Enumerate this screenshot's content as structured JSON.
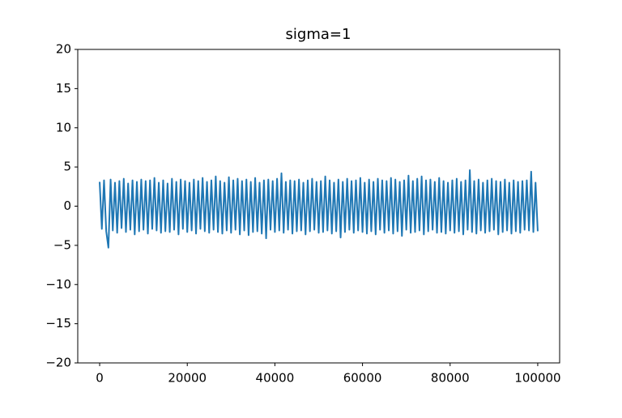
{
  "chart_data": {
    "type": "line",
    "title": "sigma=1",
    "color": "#1f77b4",
    "xlim": [
      -5000,
      105000
    ],
    "xticks": [
      0,
      20000,
      40000,
      60000,
      80000,
      100000
    ],
    "ylim": [
      -20,
      20
    ],
    "yticks": [
      {
        "value": -20,
        "label": "−20"
      },
      {
        "value": -15,
        "label": "−15"
      },
      {
        "value": -10,
        "label": "−10"
      },
      {
        "value": -5,
        "label": "−5"
      },
      0,
      5,
      10,
      15,
      20
    ],
    "x": [
      0,
      500,
      1000,
      1500,
      2000,
      2500,
      3000,
      3500,
      4000,
      4500,
      5000,
      5500,
      6000,
      6500,
      7000,
      7500,
      8000,
      8500,
      9000,
      9500,
      10000,
      10500,
      11000,
      11500,
      12000,
      12500,
      13000,
      13500,
      14000,
      14500,
      15000,
      15500,
      16000,
      16500,
      17000,
      17500,
      18000,
      18500,
      19000,
      19500,
      20000,
      20500,
      21000,
      21500,
      22000,
      22500,
      23000,
      23500,
      24000,
      24500,
      25000,
      25500,
      26000,
      26500,
      27000,
      27500,
      28000,
      28500,
      29000,
      29500,
      30000,
      30500,
      31000,
      31500,
      32000,
      32500,
      33000,
      33500,
      34000,
      34500,
      35000,
      35500,
      36000,
      36500,
      37000,
      37500,
      38000,
      38500,
      39000,
      39500,
      40000,
      40500,
      41000,
      41500,
      42000,
      42500,
      43000,
      43500,
      44000,
      44500,
      45000,
      45500,
      46000,
      46500,
      47000,
      47500,
      48000,
      48500,
      49000,
      49500,
      50000,
      50500,
      51000,
      51500,
      52000,
      52500,
      53000,
      53500,
      54000,
      54500,
      55000,
      55500,
      56000,
      56500,
      57000,
      57500,
      58000,
      58500,
      59000,
      59500,
      60000,
      60500,
      61000,
      61500,
      62000,
      62500,
      63000,
      63500,
      64000,
      64500,
      65000,
      65500,
      66000,
      66500,
      67000,
      67500,
      68000,
      68500,
      69000,
      69500,
      70000,
      70500,
      71000,
      71500,
      72000,
      72500,
      73000,
      73500,
      74000,
      74500,
      75000,
      75500,
      76000,
      76500,
      77000,
      77500,
      78000,
      78500,
      79000,
      79500,
      80000,
      80500,
      81000,
      81500,
      82000,
      82500,
      83000,
      83500,
      84000,
      84500,
      85000,
      85500,
      86000,
      86500,
      87000,
      87500,
      88000,
      88500,
      89000,
      89500,
      90000,
      90500,
      91000,
      91500,
      92000,
      92500,
      93000,
      93500,
      94000,
      94500,
      95000,
      95500,
      96000,
      96500,
      97000,
      97500,
      98000,
      98500,
      99000,
      99500,
      100000
    ],
    "values": [
      3.1,
      -2.9,
      3.3,
      -3.2,
      -5.3,
      3.4,
      -3.1,
      3.0,
      -3.4,
      3.2,
      -2.8,
      3.5,
      -3.3,
      2.9,
      -3.0,
      3.3,
      -3.6,
      3.1,
      -3.2,
      3.4,
      -3.0,
      3.2,
      -3.5,
      3.3,
      -2.9,
      3.6,
      -3.1,
      3.0,
      -3.4,
      3.3,
      -3.2,
      2.9,
      -3.3,
      3.5,
      -3.0,
      3.1,
      -3.6,
      3.4,
      -2.9,
      3.2,
      -3.3,
      3.0,
      -3.1,
      3.4,
      -3.5,
      3.2,
      -2.9,
      3.6,
      -3.2,
      3.1,
      -3.4,
      3.3,
      -3.0,
      3.8,
      -3.3,
      3.2,
      -3.5,
      3.0,
      -3.1,
      3.7,
      -3.4,
      3.3,
      -3.0,
      3.5,
      -3.6,
      3.2,
      -3.1,
      3.4,
      -3.7,
      3.1,
      -3.3,
      3.6,
      -3.2,
      3.0,
      -3.5,
      3.3,
      -4.1,
      3.4,
      -3.0,
      3.2,
      -3.3,
      3.5,
      -3.1,
      4.2,
      -3.4,
      3.1,
      -3.0,
      3.3,
      -3.5,
      3.2,
      -3.2,
      3.4,
      -3.1,
      3.0,
      -3.6,
      3.3,
      -3.2,
      3.5,
      -3.0,
      3.1,
      -3.4,
      3.2,
      -3.3,
      3.8,
      -3.1,
      3.3,
      -3.5,
      3.0,
      -3.2,
      3.4,
      -4.0,
      3.1,
      -3.3,
      3.5,
      -3.0,
      3.2,
      -3.4,
      3.3,
      -3.1,
      3.6,
      -3.3,
      3.0,
      -3.5,
      3.4,
      -3.2,
      3.1,
      -3.6,
      3.5,
      -3.0,
      3.3,
      -3.4,
      3.2,
      -3.1,
      3.6,
      -3.5,
      3.4,
      -3.2,
      3.1,
      -3.8,
      3.3,
      -3.0,
      3.9,
      -3.4,
      3.2,
      -3.3,
      3.5,
      -3.1,
      3.8,
      -3.6,
      3.3,
      -3.2,
      3.4,
      -3.0,
      3.1,
      -3.4,
      3.6,
      -3.3,
      3.2,
      -3.5,
      3.0,
      -3.1,
      3.3,
      -3.4,
      3.5,
      -3.2,
      3.1,
      -3.6,
      3.3,
      -3.0,
      4.6,
      -3.3,
      3.2,
      -3.5,
      3.4,
      -3.1,
      3.0,
      -3.4,
      3.3,
      -3.2,
      3.5,
      -3.0,
      3.2,
      -3.6,
      3.1,
      -3.3,
      3.4,
      -3.1,
      3.0,
      -3.5,
      3.3,
      -3.2,
      3.1,
      -3.4,
      3.2,
      -3.0,
      3.3,
      -3.1,
      4.4,
      -3.3,
      3.0,
      -3.2
    ]
  }
}
